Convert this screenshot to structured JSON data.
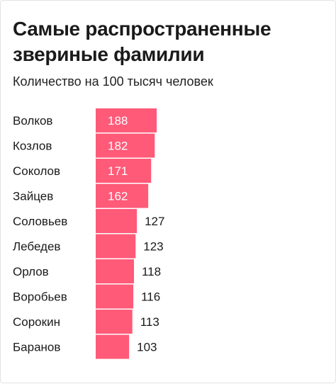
{
  "header": {
    "title": "Самые распространенные звериные фамилии",
    "subtitle": "Количество на 100 тысяч человек"
  },
  "chart_data": {
    "type": "bar",
    "orientation": "horizontal",
    "title": "Самые распространенные звериные фамилии",
    "subtitle": "Количество на 100 тысяч человек",
    "categories": [
      "Волков",
      "Козлов",
      "Соколов",
      "Зайцев",
      "Соловьев",
      "Лебедев",
      "Орлов",
      "Воробьев",
      "Сорокин",
      "Баранов"
    ],
    "values": [
      188,
      182,
      171,
      162,
      127,
      123,
      118,
      116,
      113,
      103
    ],
    "xlim": [
      0,
      188
    ],
    "grid": false,
    "legend": "none",
    "bar_color": "#ff5a78"
  }
}
